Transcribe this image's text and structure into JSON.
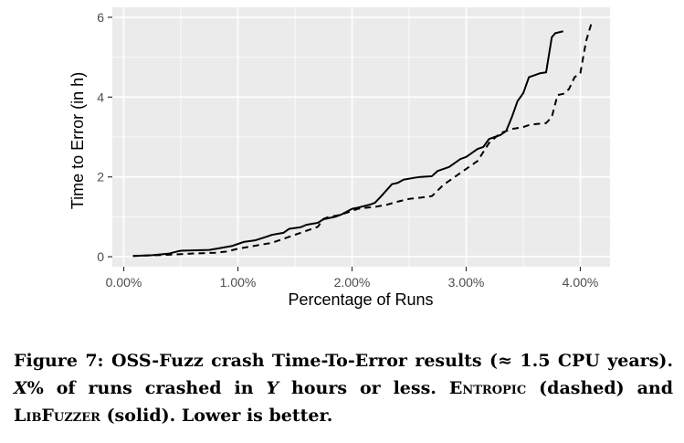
{
  "chart_data": {
    "type": "line",
    "title": "",
    "xlabel": "Percentage of Runs",
    "ylabel": "Time to Error (in h)",
    "xlim": [
      -0.001,
      0.0426
    ],
    "ylim": [
      -0.25,
      6.25
    ],
    "x_ticks": [
      {
        "value": 0.0,
        "label": "0.00%"
      },
      {
        "value": 0.01,
        "label": "1.00%"
      },
      {
        "value": 0.02,
        "label": "2.00%"
      },
      {
        "value": 0.03,
        "label": "3.00%"
      },
      {
        "value": 0.04,
        "label": "4.00%"
      }
    ],
    "y_ticks": [
      {
        "value": 0,
        "label": "0"
      },
      {
        "value": 2,
        "label": "2"
      },
      {
        "value": 4,
        "label": "4"
      },
      {
        "value": 6,
        "label": "6"
      }
    ],
    "grid": true,
    "background": "#ebebeb",
    "series": [
      {
        "name": "LibFuzzer",
        "style": "solid",
        "color": "#000000",
        "x": [
          0.0008,
          0.0025,
          0.004,
          0.0048,
          0.005,
          0.006,
          0.0075,
          0.0085,
          0.0095,
          0.0105,
          0.0115,
          0.0125,
          0.013,
          0.014,
          0.0145,
          0.0155,
          0.016,
          0.017,
          0.0175,
          0.0185,
          0.019,
          0.02,
          0.0205,
          0.0215,
          0.022,
          0.0225,
          0.0235,
          0.024,
          0.0245,
          0.0255,
          0.026,
          0.027,
          0.0275,
          0.0285,
          0.029,
          0.0295,
          0.03,
          0.0305,
          0.031,
          0.0315,
          0.032,
          0.0325,
          0.033,
          0.0335,
          0.034,
          0.0345,
          0.035,
          0.0355,
          0.036,
          0.0365,
          0.037,
          0.0375,
          0.0378,
          0.0385
        ],
        "y": [
          0.02,
          0.04,
          0.08,
          0.14,
          0.15,
          0.16,
          0.17,
          0.22,
          0.27,
          0.37,
          0.41,
          0.5,
          0.55,
          0.6,
          0.7,
          0.74,
          0.8,
          0.85,
          0.94,
          1.0,
          1.05,
          1.2,
          1.23,
          1.3,
          1.35,
          1.5,
          1.82,
          1.85,
          1.93,
          1.98,
          2.0,
          2.02,
          2.15,
          2.25,
          2.35,
          2.45,
          2.5,
          2.6,
          2.7,
          2.75,
          2.95,
          3.0,
          3.05,
          3.15,
          3.5,
          3.9,
          4.1,
          4.5,
          4.55,
          4.6,
          4.62,
          5.5,
          5.6,
          5.65
        ]
      },
      {
        "name": "Entropic",
        "style": "dashed",
        "color": "#000000",
        "x": [
          0.0008,
          0.002,
          0.004,
          0.006,
          0.008,
          0.009,
          0.01,
          0.011,
          0.012,
          0.013,
          0.014,
          0.015,
          0.016,
          0.017,
          0.0175,
          0.018,
          0.019,
          0.02,
          0.0205,
          0.021,
          0.022,
          0.023,
          0.024,
          0.025,
          0.026,
          0.027,
          0.028,
          0.029,
          0.03,
          0.0305,
          0.031,
          0.032,
          0.033,
          0.034,
          0.035,
          0.0355,
          0.036,
          0.037,
          0.0375,
          0.038,
          0.0385,
          0.039,
          0.0395,
          0.04,
          0.0405,
          0.041
        ],
        "y": [
          0.02,
          0.03,
          0.05,
          0.08,
          0.1,
          0.13,
          0.2,
          0.25,
          0.3,
          0.35,
          0.45,
          0.55,
          0.65,
          0.75,
          0.95,
          1.0,
          1.05,
          1.15,
          1.2,
          1.22,
          1.25,
          1.3,
          1.38,
          1.45,
          1.48,
          1.52,
          1.8,
          2.0,
          2.2,
          2.3,
          2.4,
          2.85,
          3.1,
          3.2,
          3.25,
          3.3,
          3.32,
          3.35,
          3.5,
          4.05,
          4.08,
          4.2,
          4.5,
          4.6,
          5.4,
          5.88
        ]
      }
    ]
  },
  "caption": {
    "label": "Figure 7:",
    "text_a": " OSS-Fuzz crash Time-To-Error results (≈ 1.5 CPU years). ",
    "x_var": "X",
    "text_b": "% of runs crashed in ",
    "y_var": "Y",
    "text_c": " hours or less. ",
    "entropic": "Entropic",
    "text_d": " (dashed) and ",
    "libfuzzer": "LibFuzzer",
    "text_e": " (solid). Lower is better."
  }
}
